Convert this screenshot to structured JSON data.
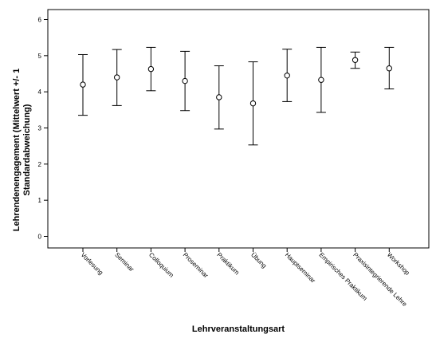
{
  "chart_data": {
    "type": "scatter",
    "variant": "error-bar",
    "title": "",
    "xlabel": "Lehrveranstaltungsart",
    "ylabel_lines": [
      "Lehrendenengagement (Mittelwert +/- 1",
      "Standardabweichung)"
    ],
    "ylim": [
      0,
      6
    ],
    "yticks": [
      0,
      1,
      2,
      3,
      4,
      5,
      6
    ],
    "grid": false,
    "categories": [
      "Vorlesung",
      "Seminar",
      "Colloquium",
      "Proseminar",
      "Praktikum",
      "Übung",
      "Hauptseminar",
      "Empirisches Praktikum",
      "Praxisintegrierende Lehre",
      "Workshop"
    ],
    "series": [
      {
        "mean": [
          4.2,
          4.4,
          4.63,
          4.3,
          3.85,
          3.68,
          4.45,
          4.33,
          4.88,
          4.65
        ],
        "lower": [
          3.35,
          3.62,
          4.03,
          3.48,
          2.97,
          2.53,
          3.73,
          3.43,
          4.65,
          4.08
        ],
        "upper": [
          5.03,
          5.17,
          5.23,
          5.12,
          4.72,
          4.83,
          5.18,
          5.23,
          5.1,
          5.23
        ]
      }
    ]
  }
}
